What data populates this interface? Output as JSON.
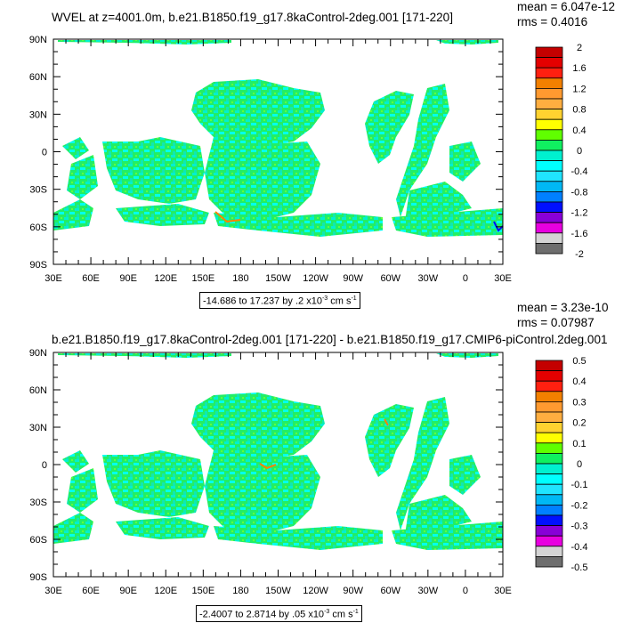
{
  "chart_data": [
    {
      "type": "heatmap",
      "title": "WVEL at z=4001.0m, b.e21.B1850.f19_g17.8kaControl-2deg.001 [171-220]",
      "mean_label": "mean = 6.047e-12",
      "rms_label": "rms = 0.4016",
      "info": {
        "range": "-14.686 to 17.237 by .2 x10",
        "exp": "-3",
        "units": " cm s",
        "units_exp": "-1"
      },
      "x_ticks": [
        "30E",
        "60E",
        "90E",
        "120E",
        "150E",
        "180",
        "150W",
        "120W",
        "90W",
        "60W",
        "30W",
        "0",
        "30E"
      ],
      "y_ticks": [
        "90N",
        "60N",
        "30N",
        "0",
        "30S",
        "60S",
        "90S"
      ],
      "xlim": [
        30,
        390
      ],
      "ylim": [
        -90,
        90
      ],
      "colorbar": {
        "labels": [
          "2",
          "1.6",
          "1.2",
          "0.8",
          "0.4",
          "0",
          "-0.4",
          "-0.8",
          "-1.2",
          "-1.6",
          "-2"
        ],
        "range": [
          -2,
          2
        ],
        "step": 0.2
      }
    },
    {
      "type": "heatmap",
      "title": "b.e21.B1850.f19_g17.8kaControl-2deg.001 [171-220] - b.e21.B1850.f19_g17.CMIP6-piControl.2deg.001",
      "mean_label": "mean = 3.23e-10",
      "rms_label": "rms = 0.07987",
      "info": {
        "range": "-2.4007 to 2.8714 by .05 x10",
        "exp": "-3",
        "units": " cm s",
        "units_exp": "-1"
      },
      "x_ticks": [
        "30E",
        "60E",
        "90E",
        "120E",
        "150E",
        "180",
        "150W",
        "120W",
        "90W",
        "60W",
        "30W",
        "0",
        "30E"
      ],
      "y_ticks": [
        "90N",
        "60N",
        "30N",
        "0",
        "30S",
        "60S",
        "90S"
      ],
      "xlim": [
        30,
        390
      ],
      "ylim": [
        -90,
        90
      ],
      "colorbar": {
        "labels": [
          "0.5",
          "0.4",
          "0.3",
          "0.2",
          "0.1",
          "0",
          "-0.1",
          "-0.2",
          "-0.3",
          "-0.4",
          "-0.5"
        ],
        "range": [
          -0.5,
          0.5
        ],
        "step": 0.05
      }
    }
  ],
  "colors": [
    "#c40000",
    "#e40000",
    "#ff2010",
    "#f28000",
    "#ff9a30",
    "#ffae40",
    "#ffd230",
    "#ffff00",
    "#60ff00",
    "#10f060",
    "#00f0d0",
    "#00ffff",
    "#20e4ff",
    "#00b8f4",
    "#0080ff",
    "#0010ff",
    "#8800d8",
    "#e800e0",
    "#d4d4d4",
    "#6e6e6e"
  ]
}
